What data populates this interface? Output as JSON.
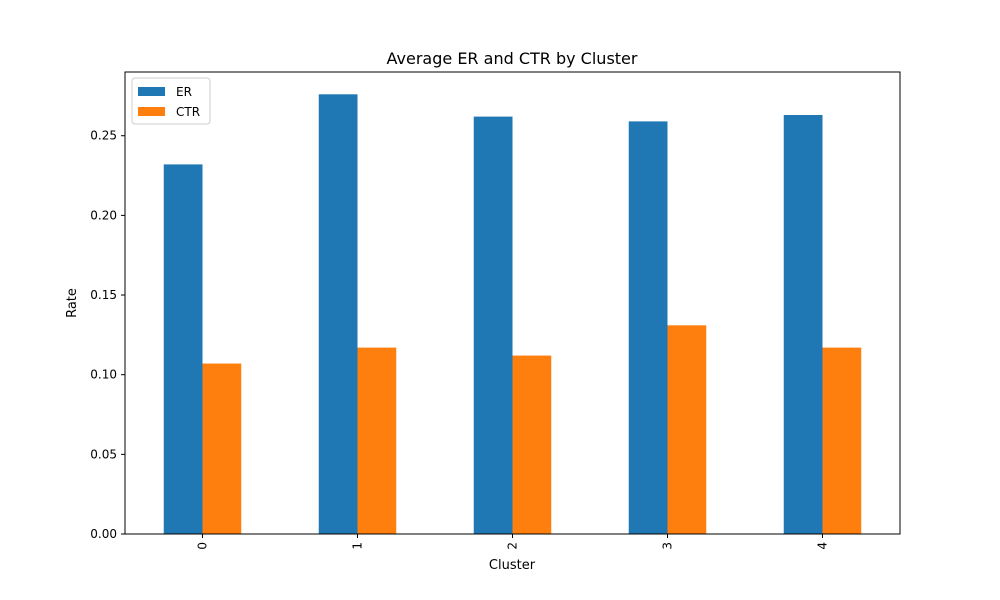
{
  "chart_data": {
    "type": "bar",
    "title": "Average ER and CTR by Cluster",
    "xlabel": "Cluster",
    "ylabel": "Rate",
    "categories": [
      "0",
      "1",
      "2",
      "3",
      "4"
    ],
    "series": [
      {
        "name": "ER",
        "color": "#1f77b4",
        "values": [
          0.232,
          0.276,
          0.262,
          0.259,
          0.263
        ]
      },
      {
        "name": "CTR",
        "color": "#ff7f0e",
        "values": [
          0.107,
          0.117,
          0.112,
          0.131,
          0.117
        ]
      }
    ],
    "ylim": [
      0,
      0.29
    ],
    "yticks": [
      0.0,
      0.05,
      0.1,
      0.15,
      0.2,
      0.25
    ],
    "ytick_labels": [
      "0.00",
      "0.05",
      "0.10",
      "0.15",
      "0.20",
      "0.25"
    ],
    "xtick_rotation": 90,
    "grid": false,
    "legend_position": "top-left"
  }
}
